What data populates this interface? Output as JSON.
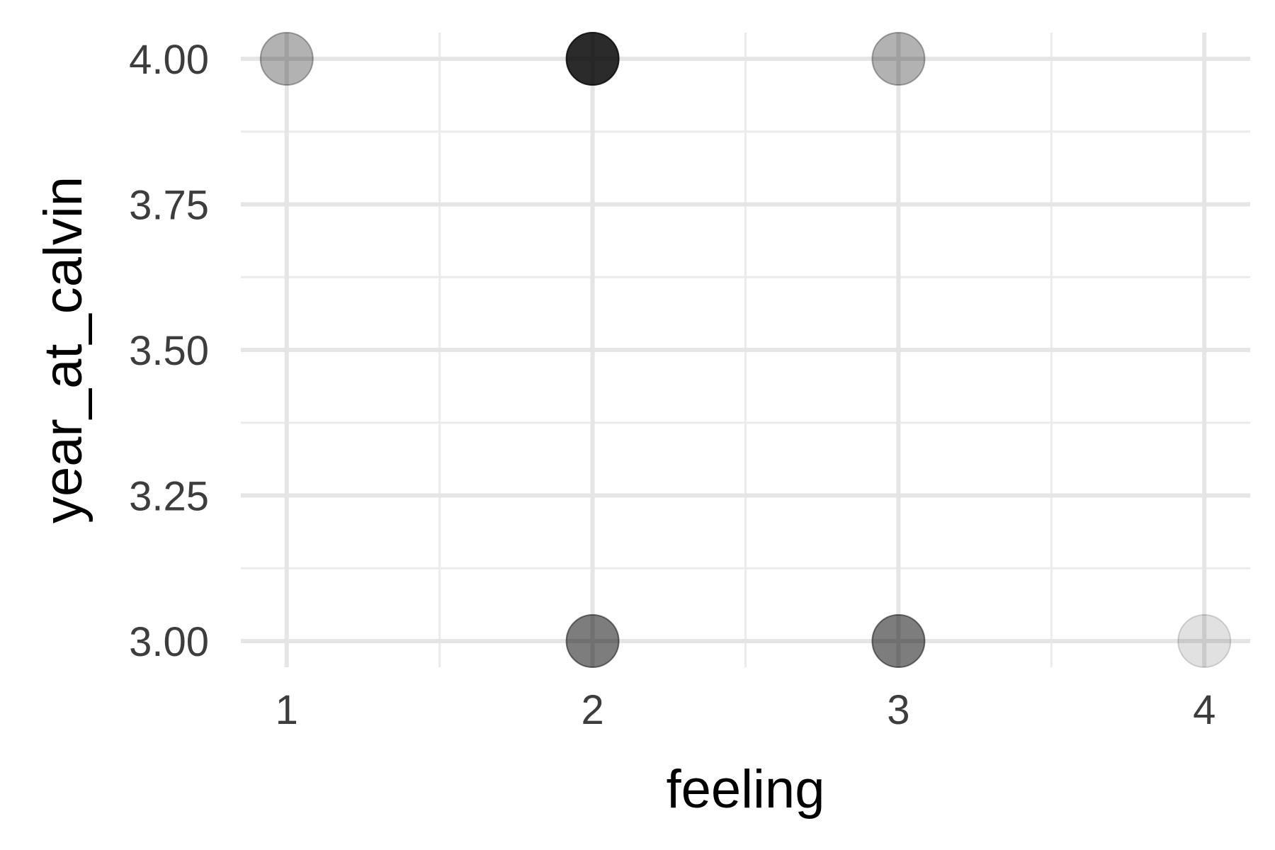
{
  "chart_data": {
    "type": "scatter",
    "title": "",
    "xlabel": "feeling",
    "ylabel": "year_at_calvin",
    "xlim": [
      0.85,
      4.15
    ],
    "ylim": [
      2.955,
      4.045
    ],
    "x_ticks": [
      1,
      2,
      3,
      4
    ],
    "x_tick_labels": [
      "1",
      "2",
      "3",
      "4"
    ],
    "y_ticks": [
      3.0,
      3.25,
      3.5,
      3.75,
      4.0
    ],
    "y_tick_labels": [
      "3.00",
      "3.25",
      "3.50",
      "3.75",
      "4.00"
    ],
    "grid": true,
    "legend": "none",
    "point_color": "#000000",
    "point_alpha_per_observation": 0.3,
    "series": [
      {
        "points": [
          {
            "x": 1,
            "y": 4.0,
            "count": 1
          },
          {
            "x": 2,
            "y": 4.0,
            "count": 5
          },
          {
            "x": 3,
            "y": 4.0,
            "count": 1
          },
          {
            "x": 2,
            "y": 3.0,
            "count": 2
          },
          {
            "x": 3,
            "y": 3.0,
            "count": 2
          },
          {
            "x": 4,
            "y": 3.0,
            "count": 0.35
          }
        ]
      }
    ]
  }
}
